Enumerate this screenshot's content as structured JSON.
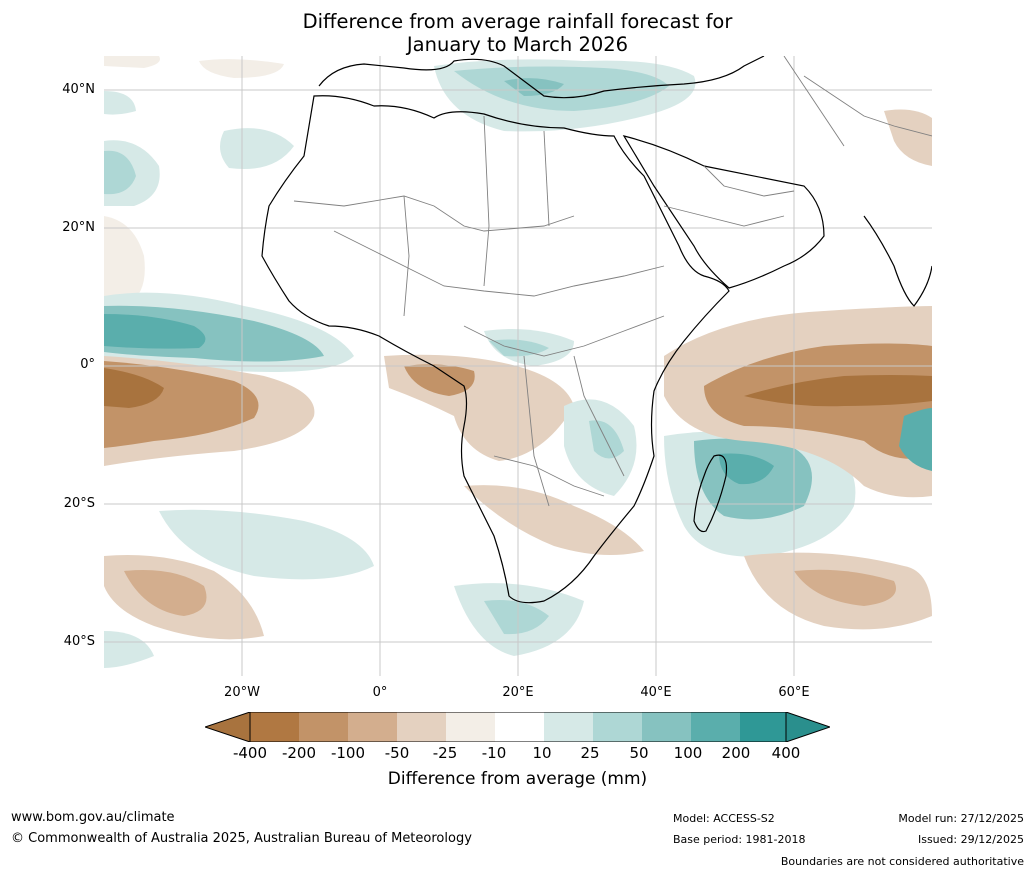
{
  "title": {
    "line1": "Difference from average rainfall forecast for",
    "line2": "January to March 2026"
  },
  "axes": {
    "lat_labels": [
      "40°N",
      "20°N",
      "0°",
      "20°S",
      "40°S"
    ],
    "lon_labels": [
      "20°W",
      "0°",
      "20°E",
      "40°E",
      "60°E"
    ]
  },
  "legend": {
    "title": "Difference from average (mm)",
    "tick_labels": [
      "-400",
      "-200",
      "-100",
      "-50",
      "-25",
      "-10",
      "10",
      "25",
      "50",
      "100",
      "200",
      "400"
    ],
    "colors": [
      "#a8733e",
      "#b07842",
      "#c29368",
      "#d3ae8e",
      "#e4d1c0",
      "#f3eee7",
      "#ffffff",
      "#d6e9e7",
      "#aed7d5",
      "#86c2c0",
      "#5aaeac",
      "#2f9896",
      "#2a8f8d"
    ]
  },
  "footer": {
    "website": "www.bom.gov.au/climate",
    "copyright": "© Commonwealth of Australia 2025, Australian Bureau of Meteorology",
    "model": "Model: ACCESS-S2",
    "base_period": "Base period: 1981-2018",
    "model_run": "Model run: 27/12/2025",
    "issued": "Issued: 29/12/2025",
    "disclaimer": "Boundaries are not considered authoritative"
  },
  "map": {
    "region": "Africa and surrounding oceans",
    "palette": {
      "dry_strong": "#a8733e",
      "dry_mid": "#c29368",
      "dry_light": "#d3ae8e",
      "dry_faint": "#e4d1c0",
      "dry_trace": "#f3eee7",
      "wet_trace": "#d6e9e7",
      "wet_light": "#aed7d5",
      "wet_mid": "#86c2c0",
      "wet_strong": "#5aaeac",
      "wet_max": "#2f9896"
    }
  }
}
